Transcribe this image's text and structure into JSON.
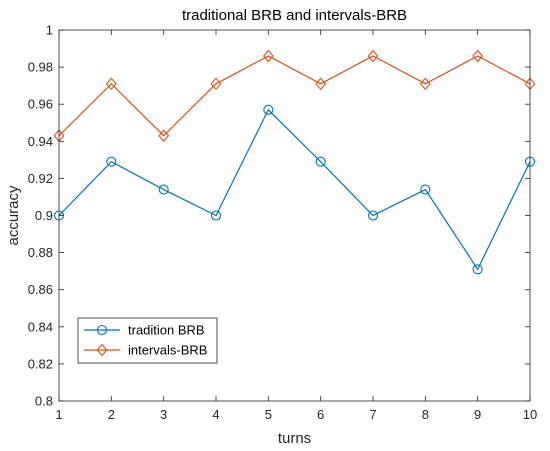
{
  "chart_data": {
    "type": "line",
    "title": "traditional BRB and intervals-BRB",
    "xlabel": "turns",
    "ylabel": "accuracy",
    "xlim": [
      1,
      10
    ],
    "ylim": [
      0.8,
      1
    ],
    "x": [
      1,
      2,
      3,
      4,
      5,
      6,
      7,
      8,
      9,
      10
    ],
    "x_ticks": [
      "1",
      "2",
      "3",
      "4",
      "5",
      "6",
      "7",
      "8",
      "9",
      "10"
    ],
    "y_ticks": [
      "0.8",
      "0.82",
      "0.84",
      "0.86",
      "0.88",
      "0.9",
      "0.92",
      "0.94",
      "0.96",
      "0.98",
      "1"
    ],
    "y_tick_values": [
      0.8,
      0.82,
      0.84,
      0.86,
      0.88,
      0.9,
      0.92,
      0.94,
      0.96,
      0.98,
      1.0
    ],
    "grid": false,
    "legend_position": "bottom-left",
    "series": [
      {
        "name": "tradition BRB",
        "color": "#0072BD",
        "marker": "circle",
        "values": [
          0.9,
          0.929,
          0.914,
          0.9,
          0.957,
          0.929,
          0.9,
          0.914,
          0.871,
          0.929
        ]
      },
      {
        "name": "intervals-BRB",
        "color": "#D95319",
        "marker": "diamond",
        "values": [
          0.943,
          0.971,
          0.943,
          0.971,
          0.986,
          0.971,
          0.986,
          0.971,
          0.986,
          0.971
        ]
      }
    ]
  }
}
